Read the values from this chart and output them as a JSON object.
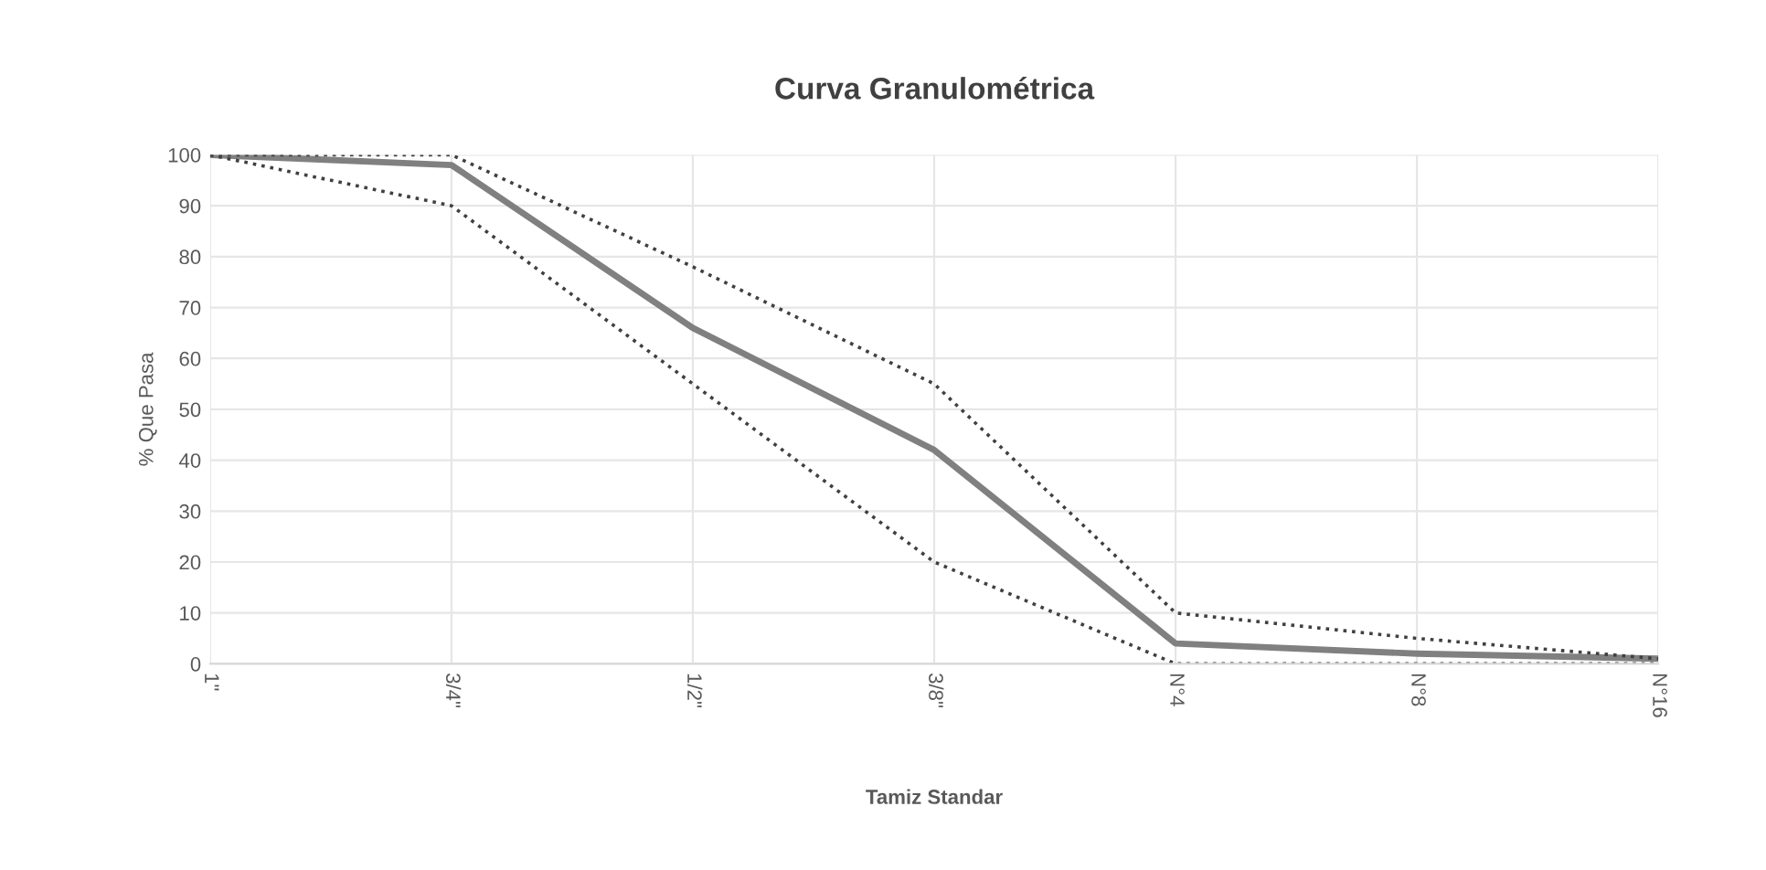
{
  "chart_data": {
    "type": "line",
    "title": "Curva Granulométrica",
    "xlabel": "Tamiz Standar",
    "ylabel": "% Que Pasa",
    "categories": [
      "1\"",
      "3/4\"",
      "1/2\"",
      "3/8\"",
      "N°4",
      "N°8",
      "N°16"
    ],
    "series": [
      {
        "color": "#808080",
        "line_style": "solid",
        "values": [
          100,
          98,
          66,
          42,
          4,
          2,
          1
        ]
      },
      {
        "color": "#404040",
        "line_style": "dotted",
        "values": [
          100,
          100,
          78,
          55,
          10,
          5,
          1
        ]
      },
      {
        "color": "#404040",
        "line_style": "dotted",
        "values": [
          100,
          90,
          55,
          20,
          0,
          0,
          0
        ]
      }
    ],
    "ylim": [
      0,
      100
    ],
    "yticks": [
      0,
      10,
      20,
      30,
      40,
      50,
      60,
      70,
      80,
      90,
      100
    ],
    "grid": true,
    "marker": "none"
  }
}
